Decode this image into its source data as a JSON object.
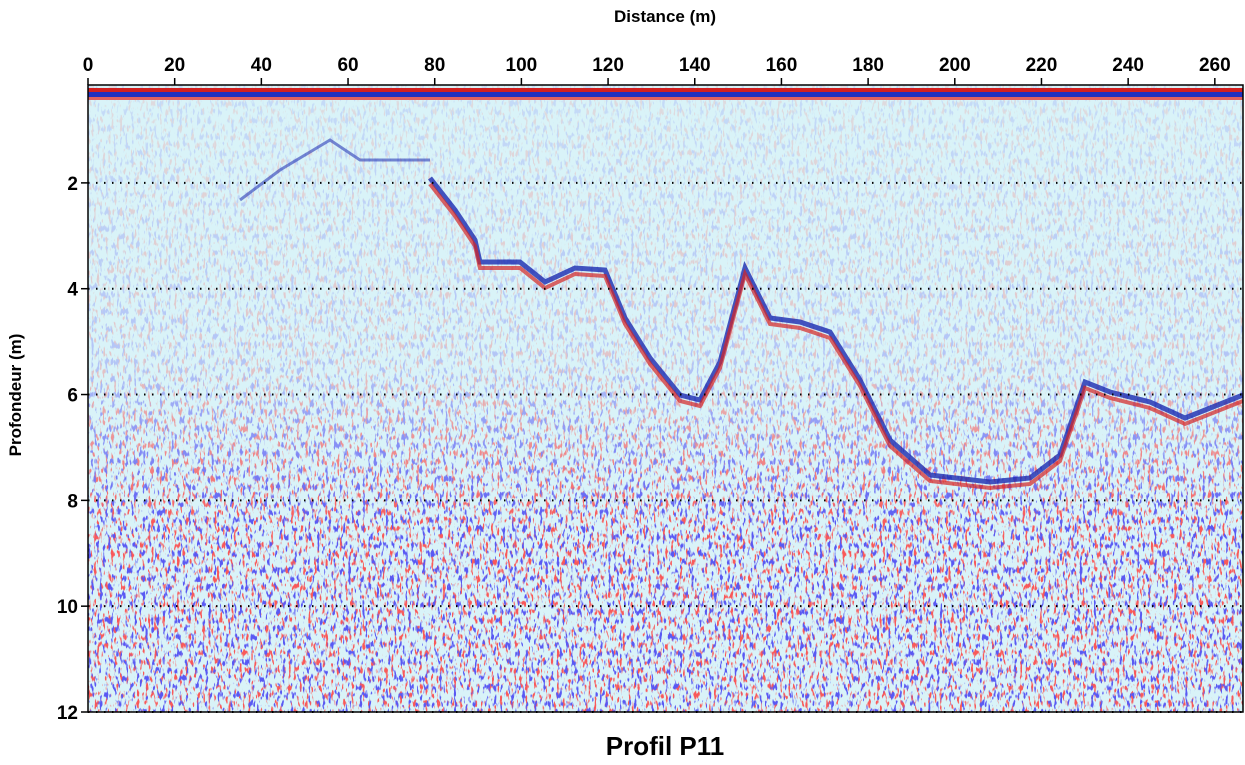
{
  "chart_data": {
    "type": "radargram",
    "title": "Profil P11",
    "x_label": "Distance (m)",
    "y_label": "Profondeur (m)",
    "xlim": [
      0,
      266.5
    ],
    "xticks": [
      0,
      20,
      40,
      60,
      80,
      100,
      120,
      140,
      160,
      180,
      200,
      220,
      240,
      260
    ],
    "ylim": [
      0.15,
      12
    ],
    "yticks": [
      2,
      4,
      6,
      8,
      10,
      12
    ],
    "y_inverted": true,
    "grid": true
  }
}
